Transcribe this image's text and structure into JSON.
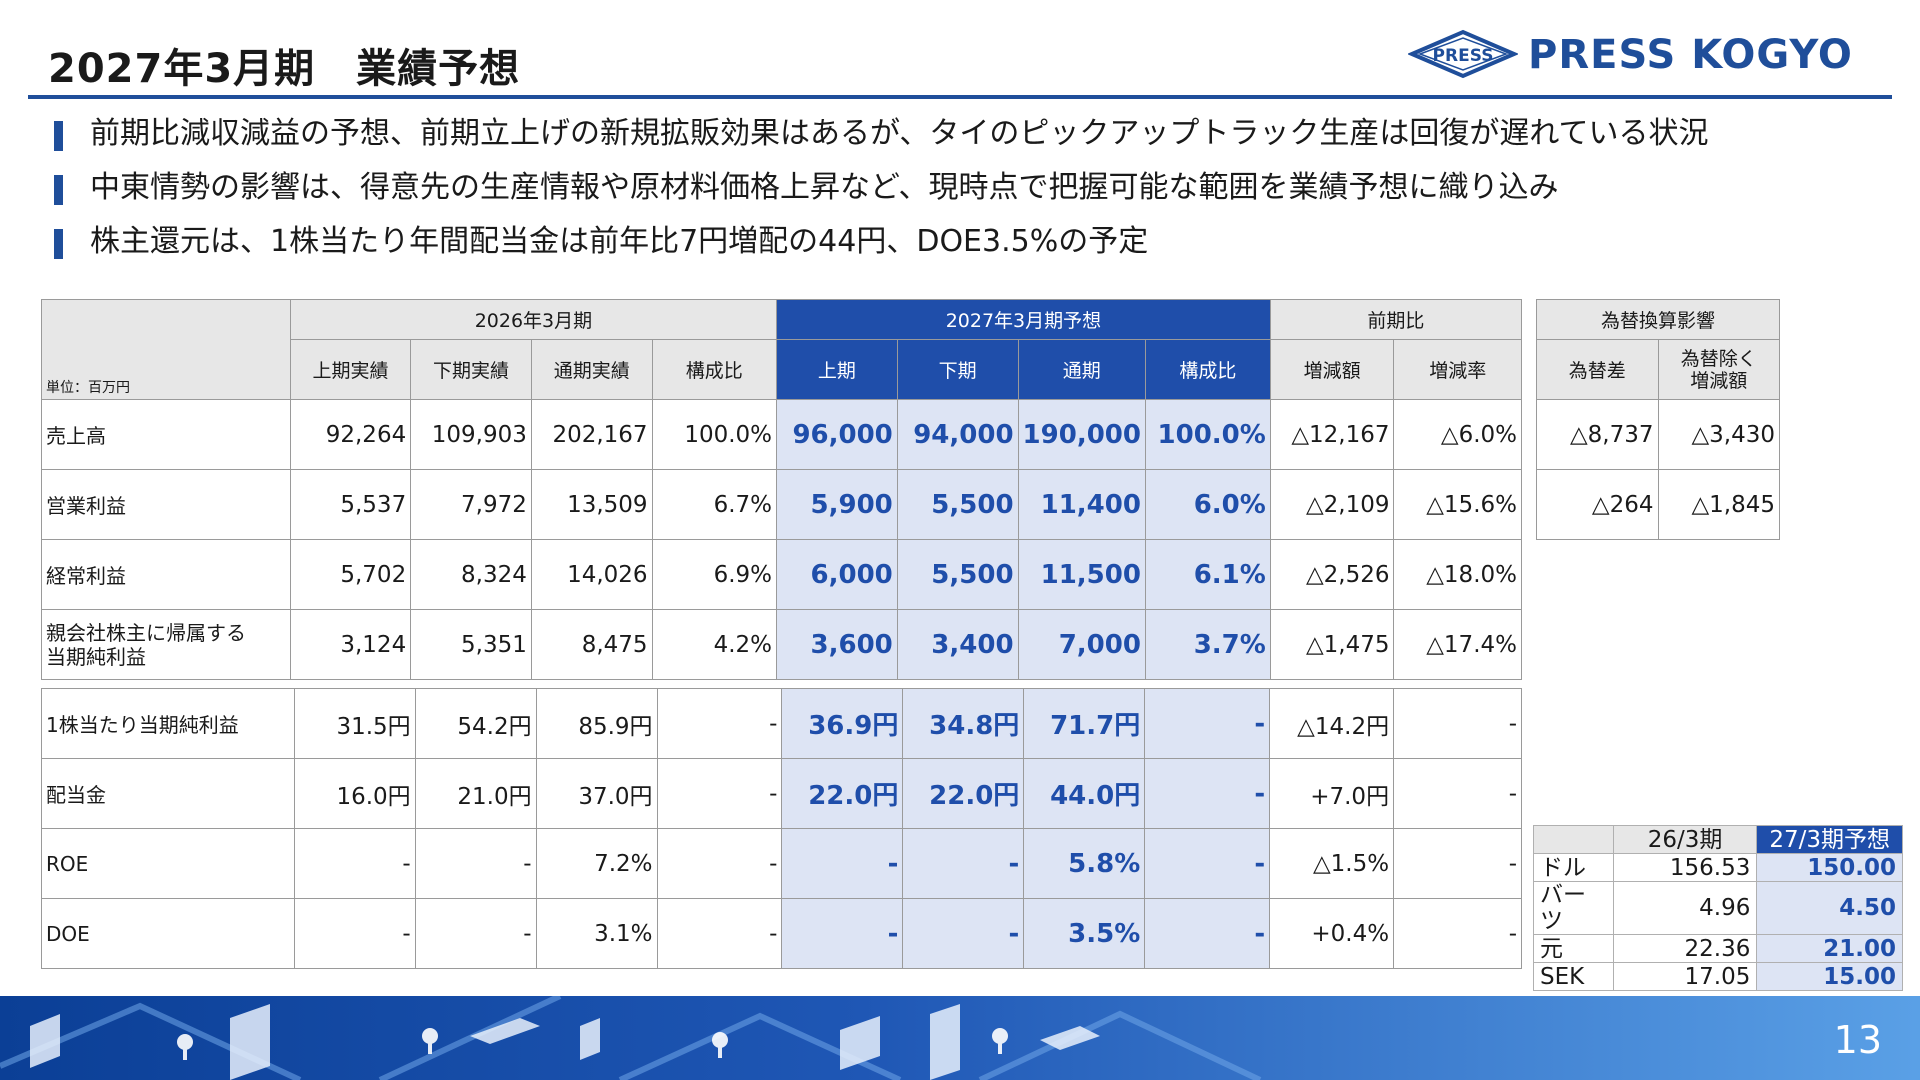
{
  "title": "2027年3月期　業績予想",
  "logo": {
    "text": "PRESS KOGYO",
    "emblem_text": "PRESS",
    "color": "#1f4e9a"
  },
  "bullets": [
    "前期比減収減益の予想、前期立上げの新規拡販効果はあるが、タイのピックアップトラック生産は回復が遅れている状況",
    "中東情勢の影響は、得意先の生産情報や原材料価格上昇など、現時点で把握可能な範囲を業績予想に織り込み",
    "株主還元は、1株当たり年間配当金は前年比7円増配の44円、DOE3.5%の予定"
  ],
  "table": {
    "unit": "単位：百万円",
    "group_headers": {
      "fy2026": "2026年3月期",
      "fy2027": "2027年3月期予想",
      "yoy": "前期比"
    },
    "col_headers": {
      "h1_actual": "上期実績",
      "h2_actual": "下期実績",
      "fy_actual": "通期実績",
      "ratio": "構成比",
      "h1": "上期",
      "h2": "下期",
      "fy": "通期",
      "ratio_f": "構成比",
      "diff": "増減額",
      "rate": "増減率"
    },
    "rows": [
      {
        "label": "売上高",
        "values": [
          "92,264",
          "109,903",
          "202,167",
          "100.0%",
          "96,000",
          "94,000",
          "190,000",
          "100.0%",
          "△12,167",
          "△6.0%"
        ]
      },
      {
        "label": "営業利益",
        "values": [
          "5,537",
          "7,972",
          "13,509",
          "6.7%",
          "5,900",
          "5,500",
          "11,400",
          "6.0%",
          "△2,109",
          "△15.6%"
        ]
      },
      {
        "label": "経常利益",
        "values": [
          "5,702",
          "8,324",
          "14,026",
          "6.9%",
          "6,000",
          "5,500",
          "11,500",
          "6.1%",
          "△2,526",
          "△18.0%"
        ]
      },
      {
        "label_line1": "親会社株主に帰属する",
        "label_line2": "当期純利益",
        "values": [
          "3,124",
          "5,351",
          "8,475",
          "4.2%",
          "3,600",
          "3,400",
          "7,000",
          "3.7%",
          "△1,475",
          "△17.4%"
        ]
      }
    ],
    "lower_rows": [
      {
        "label": "1株当たり当期純利益",
        "values": [
          "31.5円",
          "54.2円",
          "85.9円",
          "-",
          "36.9円",
          "34.8円",
          "71.7円",
          "-",
          "△14.2円",
          "-"
        ]
      },
      {
        "label": "配当金",
        "values": [
          "16.0円",
          "21.0円",
          "37.0円",
          "-",
          "22.0円",
          "22.0円",
          "44.0円",
          "-",
          "+7.0円",
          "-"
        ]
      },
      {
        "label": "ROE",
        "values": [
          "-",
          "-",
          "7.2%",
          "-",
          "-",
          "-",
          "5.8%",
          "-",
          "△1.5%",
          "-"
        ]
      },
      {
        "label": "DOE",
        "values": [
          "-",
          "-",
          "3.1%",
          "-",
          "-",
          "-",
          "3.5%",
          "-",
          "+0.4%",
          "-"
        ]
      }
    ]
  },
  "fx_impact": {
    "header": "為替換算影響",
    "col1": "為替差",
    "col2_line1": "為替除く",
    "col2_line2": "増減額",
    "rows": [
      [
        "△8,737",
        "△3,430"
      ],
      [
        "△264",
        "△1,845"
      ]
    ]
  },
  "rates": {
    "headers": [
      "26/3期",
      "27/3期予想"
    ],
    "rows": [
      {
        "label": "ドル",
        "prev": "156.53",
        "next": "150.00"
      },
      {
        "label": "バーツ",
        "prev": "4.96",
        "next": "4.50"
      },
      {
        "label": "元",
        "prev": "22.36",
        "next": "21.00"
      },
      {
        "label": "SEK",
        "prev": "17.05",
        "next": "15.00"
      }
    ]
  },
  "page_number": "13",
  "colors": {
    "accent": "#1f4e9a",
    "forecast_header": "#1f4eaa",
    "forecast_cell": "#dde4f4",
    "header_gray": "#e7e7e7"
  }
}
